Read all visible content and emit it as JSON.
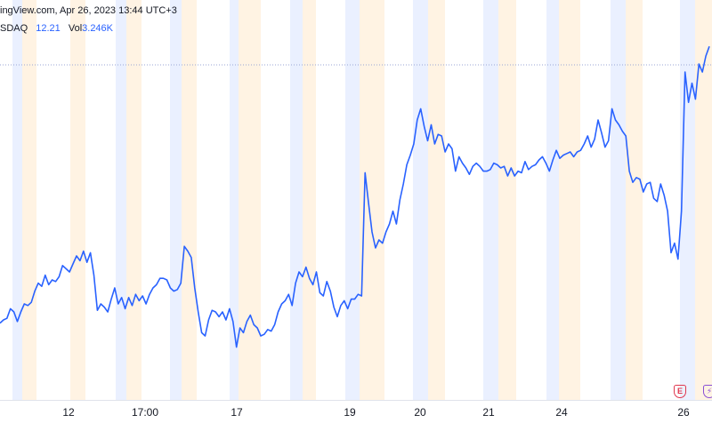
{
  "header": {
    "watermark": "ingView.com, Apr 26, 2023 13:44 UTC+3",
    "symbol": "SDAQ",
    "last_price": "12.21",
    "volume_label": "Vol",
    "volume_value": "3.246K"
  },
  "event_markers": [
    {
      "name": "earnings-event-icon",
      "glyph": "E",
      "color": "#e0374e"
    },
    {
      "name": "split-event-icon",
      "glyph": "⚡",
      "color": "#8a4fd6"
    }
  ],
  "colors": {
    "line": "#2962ff",
    "premarket_band": "#eaf0ff",
    "postmarket_band": "#fff3e3",
    "last_price_line": "#9aa6d6"
  },
  "chart_data": {
    "type": "line",
    "x_tick_labels": [
      "12",
      "17:00",
      "17",
      "19",
      "20",
      "21",
      "24",
      "26"
    ],
    "last_value": 12.21,
    "ylim": [
      10.0,
      12.5
    ],
    "series": [
      {
        "values": [
          10.48,
          10.5,
          10.51,
          10.57,
          10.55,
          10.49,
          10.55,
          10.6,
          10.59,
          10.61,
          10.68,
          10.73,
          10.71,
          10.78,
          10.72,
          10.75,
          10.74,
          10.77,
          10.84,
          10.82,
          10.8,
          10.85,
          10.9,
          10.87,
          10.93,
          10.86,
          10.92,
          10.78,
          10.56,
          10.6,
          10.58,
          10.55,
          10.63,
          10.7,
          10.6,
          10.64,
          10.57,
          10.64,
          10.59,
          10.66,
          10.62,
          10.65,
          10.6,
          10.66,
          10.7,
          10.72,
          10.76,
          10.76,
          10.75,
          10.7,
          10.68,
          10.69,
          10.73,
          10.96,
          10.93,
          10.89,
          10.7,
          10.55,
          10.42,
          10.4,
          10.5,
          10.56,
          10.55,
          10.52,
          10.55,
          10.5,
          10.57,
          10.49,
          10.33,
          10.45,
          10.42,
          10.49,
          10.53,
          10.47,
          10.45,
          10.4,
          10.41,
          10.44,
          10.43,
          10.47,
          10.55,
          10.6,
          10.62,
          10.66,
          10.59,
          10.73,
          10.8,
          10.77,
          10.83,
          10.76,
          10.72,
          10.8,
          10.67,
          10.65,
          10.74,
          10.68,
          10.58,
          10.52,
          10.59,
          10.62,
          10.57,
          10.63,
          10.63,
          10.66,
          10.65,
          11.42,
          11.23,
          11.05,
          10.95,
          11.0,
          10.98,
          11.05,
          11.1,
          11.18,
          11.1,
          11.25,
          11.35,
          11.47,
          11.53,
          11.6,
          11.75,
          11.82,
          11.71,
          11.62,
          11.72,
          11.6,
          11.66,
          11.65,
          11.55,
          11.6,
          11.57,
          11.43,
          11.52,
          11.48,
          11.45,
          11.41,
          11.46,
          11.48,
          11.46,
          11.43,
          11.43,
          11.44,
          11.48,
          11.47,
          11.45,
          11.46,
          11.4,
          11.45,
          11.4,
          11.43,
          11.42,
          11.49,
          11.44,
          11.46,
          11.47,
          11.5,
          11.52,
          11.48,
          11.43,
          11.5,
          11.56,
          11.51,
          11.53,
          11.54,
          11.55,
          11.52,
          11.55,
          11.56,
          11.6,
          11.65,
          11.58,
          11.63,
          11.75,
          11.67,
          11.58,
          11.62,
          11.82,
          11.75,
          11.72,
          11.68,
          11.65,
          11.43,
          11.36,
          11.39,
          11.38,
          11.3,
          11.35,
          11.36,
          11.26,
          11.24,
          11.35,
          11.28,
          11.18,
          10.92,
          10.98,
          10.88,
          11.18,
          12.05,
          11.86,
          11.98,
          11.88,
          12.1,
          12.05,
          12.15,
          12.21
        ]
      }
    ]
  }
}
